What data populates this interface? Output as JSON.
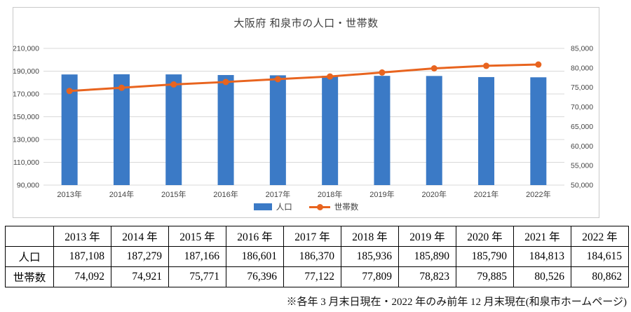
{
  "chart_data": {
    "type": "combo-bar-line",
    "title": "大阪府 和泉市の人口・世帯数",
    "categories": [
      "2013年",
      "2014年",
      "2015年",
      "2016年",
      "2017年",
      "2018年",
      "2019年",
      "2020年",
      "2021年",
      "2022年"
    ],
    "series": [
      {
        "name": "人口",
        "type": "bar",
        "axis": "left",
        "color": "#3B7AC6",
        "values": [
          187108,
          187279,
          187166,
          186601,
          186370,
          185936,
          185890,
          185790,
          184813,
          184615
        ]
      },
      {
        "name": "世帯数",
        "type": "line",
        "axis": "right",
        "color": "#E8641F",
        "values": [
          74092,
          74921,
          75771,
          76396,
          77122,
          77809,
          78823,
          79885,
          80526,
          80862
        ]
      }
    ],
    "left_axis": {
      "min": 90000,
      "max": 210000,
      "step": 20000
    },
    "right_axis": {
      "min": 50000,
      "max": 85000,
      "step": 5000
    },
    "grid": true,
    "gridline_color": "#d9d9d9",
    "legend_position": "bottom"
  },
  "table": {
    "corner_label": "",
    "col_headers": [
      "2013 年",
      "2014 年",
      "2015 年",
      "2016 年",
      "2017 年",
      "2018 年",
      "2019 年",
      "2020 年",
      "2021 年",
      "2022 年"
    ],
    "rows": [
      {
        "label": "人口",
        "values": [
          "187,108",
          "187,279",
          "187,166",
          "186,601",
          "186,370",
          "185,936",
          "185,890",
          "185,790",
          "184,813",
          "184,615"
        ]
      },
      {
        "label": "世帯数",
        "values": [
          "74,092",
          "74,921",
          "75,771",
          "76,396",
          "77,122",
          "77,809",
          "78,823",
          "79,885",
          "80,526",
          "80,862"
        ]
      }
    ]
  },
  "footnote": "※各年 3 月末日現在・2022 年のみ前年 12 月末現在(和泉市ホームページ)"
}
